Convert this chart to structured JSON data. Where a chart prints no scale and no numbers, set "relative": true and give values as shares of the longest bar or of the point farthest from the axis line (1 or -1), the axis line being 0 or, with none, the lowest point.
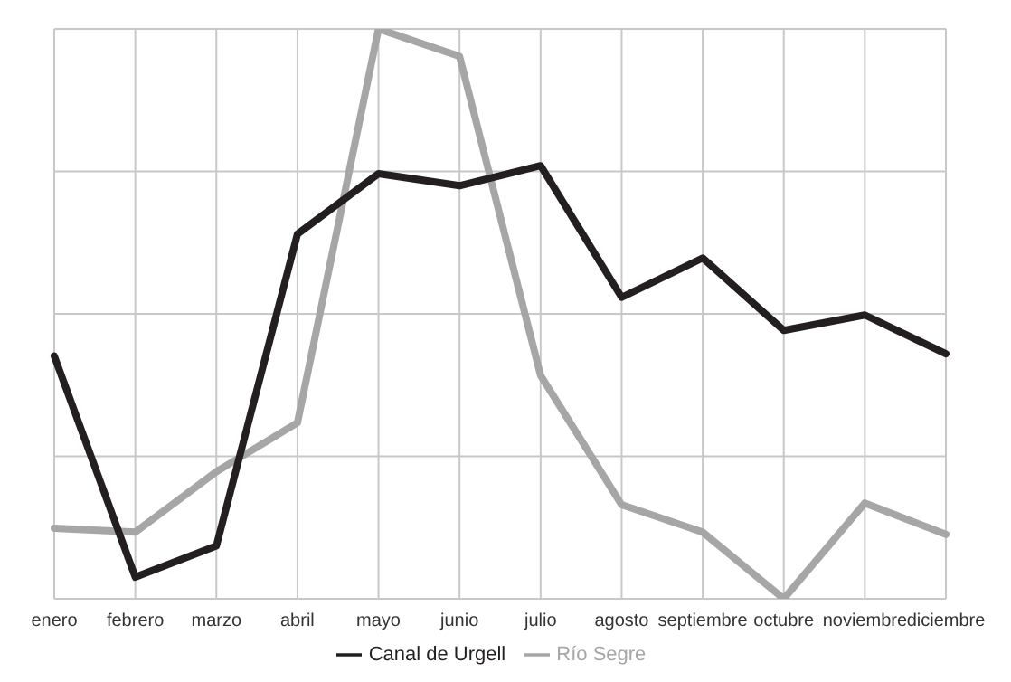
{
  "chart_data": {
    "type": "line",
    "relative": true,
    "categories": [
      "enero",
      "febrero",
      "marzo",
      "abril",
      "mayo",
      "junio",
      "julio",
      "agosto",
      "septiembre",
      "octubre",
      "noviembre",
      "diciembre"
    ],
    "series": [
      {
        "name": "Río Segre",
        "color": "#a6a6a6",
        "values": [
          0.124,
          0.117,
          0.223,
          0.309,
          1,
          0.952,
          0.392,
          0.165,
          0.117,
          0,
          0.168,
          0.113
        ]
      },
      {
        "name": "Canal de Urgell",
        "color": "#231f20",
        "values": [
          0.426,
          0.038,
          0.093,
          0.64,
          0.746,
          0.725,
          0.76,
          0.529,
          0.598,
          0.471,
          0.498,
          0.43
        ]
      }
    ],
    "grid": true,
    "legend": "bottom",
    "marker": "none",
    "line_style": "solid"
  }
}
